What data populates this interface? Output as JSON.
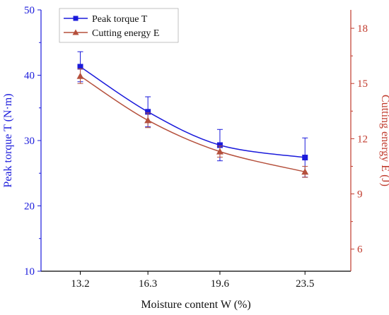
{
  "chart_data": {
    "type": "line",
    "xlabel": "Moisture content W (%)",
    "categories": [
      "13.2",
      "16.3",
      "19.6",
      "23.5"
    ],
    "x": [
      13.2,
      16.3,
      19.6,
      23.5
    ],
    "xlim": [
      11.4,
      25.6
    ],
    "left_axis": {
      "label": "Peak torque T (N·m)",
      "lim": [
        10,
        50
      ],
      "ticks": [
        "10",
        "20",
        "30",
        "40",
        "50"
      ],
      "color": "#1a1adb"
    },
    "right_axis": {
      "label": "Cutting energy E (J)",
      "lim": [
        4.8,
        19.0
      ],
      "ticks": [
        "6",
        "9",
        "12",
        "15",
        "18"
      ],
      "color": "#c0392b"
    },
    "series": [
      {
        "name": "Peak torque T",
        "axis": "left",
        "values": [
          41.3,
          34.4,
          29.3,
          27.4
        ],
        "errors": [
          2.3,
          2.3,
          2.4,
          3.0
        ],
        "marker": "square",
        "color": "#1a1adb"
      },
      {
        "name": "Cutting energy E",
        "axis": "right",
        "values": [
          15.4,
          13.0,
          11.3,
          10.2
        ],
        "errors": [
          0.4,
          0.4,
          0.3,
          0.3
        ],
        "marker": "triangle",
        "color": "#b5503c"
      }
    ],
    "legend_position": "top-left",
    "grid": false
  }
}
